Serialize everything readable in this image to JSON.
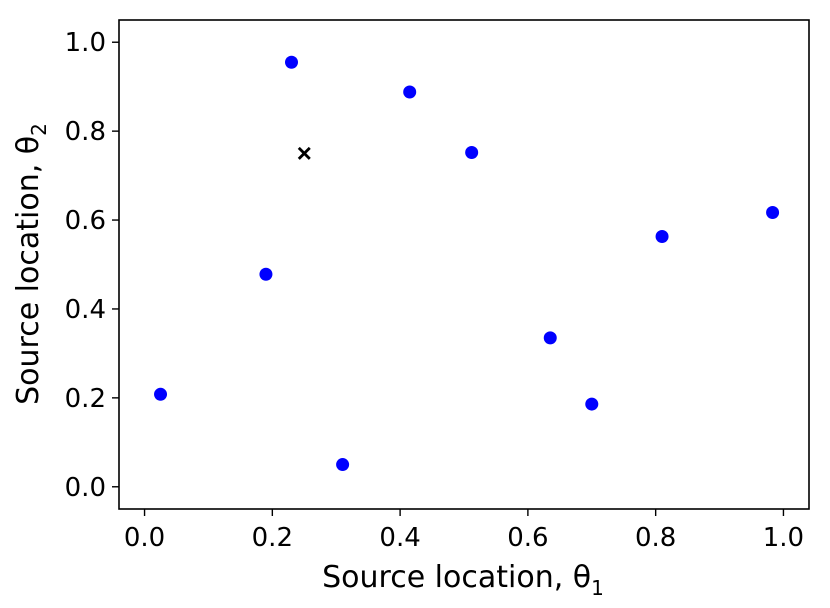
{
  "chart_data": {
    "type": "scatter",
    "xlabel": "Source location, θ",
    "xlabel_subscript": "1",
    "ylabel": "Source location, θ",
    "ylabel_subscript": "2",
    "xlim": [
      -0.04,
      1.04
    ],
    "ylim": [
      -0.05,
      1.05
    ],
    "xticks": [
      0.0,
      0.2,
      0.4,
      0.6,
      0.8,
      1.0
    ],
    "yticks": [
      0.0,
      0.2,
      0.4,
      0.6,
      0.8,
      1.0
    ],
    "xtick_labels": [
      "0.0",
      "0.2",
      "0.4",
      "0.6",
      "0.8",
      "1.0"
    ],
    "ytick_labels": [
      "0.0",
      "0.2",
      "0.4",
      "0.6",
      "0.8",
      "1.0"
    ],
    "grid": false,
    "series": [
      {
        "marker": "circle",
        "color": "#0000ff",
        "points": [
          {
            "x": 0.025,
            "y": 0.208
          },
          {
            "x": 0.19,
            "y": 0.478
          },
          {
            "x": 0.23,
            "y": 0.955
          },
          {
            "x": 0.31,
            "y": 0.05
          },
          {
            "x": 0.415,
            "y": 0.888
          },
          {
            "x": 0.512,
            "y": 0.752
          },
          {
            "x": 0.635,
            "y": 0.335
          },
          {
            "x": 0.7,
            "y": 0.186
          },
          {
            "x": 0.81,
            "y": 0.563
          },
          {
            "x": 0.983,
            "y": 0.617
          }
        ]
      },
      {
        "marker": "x",
        "color": "#000000",
        "points": [
          {
            "x": 0.25,
            "y": 0.75
          }
        ]
      }
    ]
  }
}
